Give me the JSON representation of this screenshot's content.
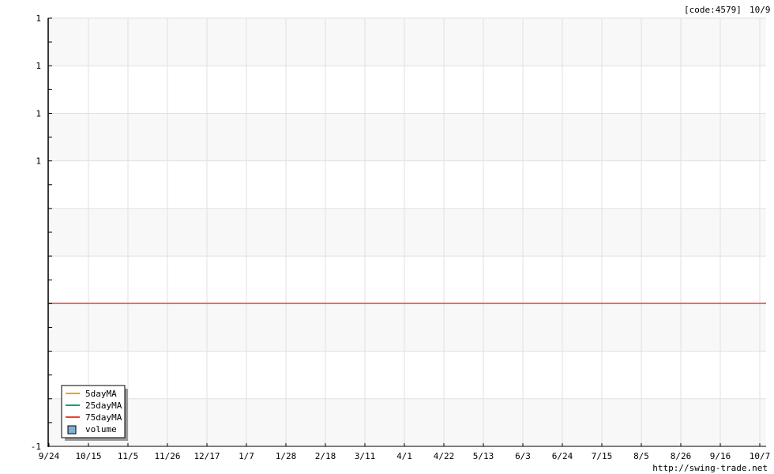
{
  "header": {
    "code_label": "[code:4579]",
    "date_label": "10/9"
  },
  "footer": {
    "url": "http://swing-trade.net"
  },
  "chart_data": {
    "type": "line",
    "title": "",
    "x_tick_labels": [
      "9/24",
      "10/15",
      "11/5",
      "11/26",
      "12/17",
      "1/7",
      "1/28",
      "2/18",
      "3/11",
      "4/1",
      "4/22",
      "5/13",
      "6/3",
      "6/24",
      "7/15",
      "8/5",
      "8/26",
      "9/16",
      "10/7"
    ],
    "y_tick_labels": [
      "1",
      "1",
      "1",
      "1",
      "",
      "",
      "",
      "",
      "",
      "-1"
    ],
    "ylim": [
      -1,
      1
    ],
    "grid": true,
    "legend_position": "bottom-left",
    "series": [
      {
        "name": "5dayMA",
        "color": "#f0a000",
        "values": []
      },
      {
        "name": "25dayMA",
        "color": "#00a070",
        "values": []
      },
      {
        "name": "75dayMA",
        "color": "#f04030",
        "values": [
          0,
          0
        ]
      },
      {
        "name": "volume",
        "color": "#7fb0d0",
        "type": "bar",
        "values": []
      }
    ]
  }
}
